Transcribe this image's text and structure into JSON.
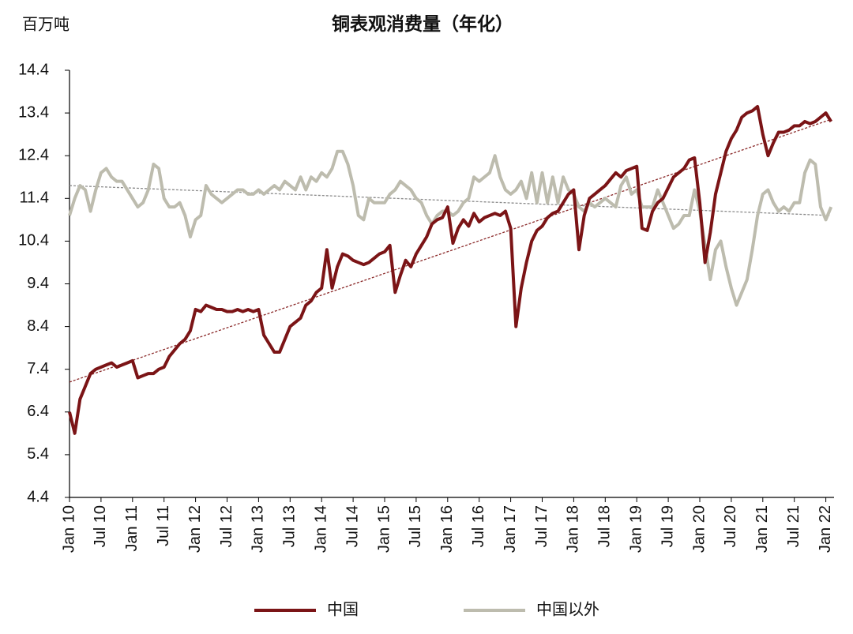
{
  "chart_data": {
    "type": "line",
    "title": "铜表观消费量（年化）",
    "y_label": "百万吨",
    "categories": [
      "Jan 10",
      null,
      null,
      null,
      null,
      null,
      "Jul 10",
      null,
      null,
      null,
      null,
      null,
      "Jan 11",
      null,
      null,
      null,
      null,
      null,
      "Jul 11",
      null,
      null,
      null,
      null,
      null,
      "Jan 12",
      null,
      null,
      null,
      null,
      null,
      "Jul 12",
      null,
      null,
      null,
      null,
      null,
      "Jan 13",
      null,
      null,
      null,
      null,
      null,
      "Jul 13",
      null,
      null,
      null,
      null,
      null,
      "Jan 14",
      null,
      null,
      null,
      null,
      null,
      "Jul 14",
      null,
      null,
      null,
      null,
      null,
      "Jan 15",
      null,
      null,
      null,
      null,
      null,
      "Jul 15",
      null,
      null,
      null,
      null,
      null,
      "Jan 16",
      null,
      null,
      null,
      null,
      null,
      "Jul 16",
      null,
      null,
      null,
      null,
      null,
      "Jan 17",
      null,
      null,
      null,
      null,
      null,
      "Jul 17",
      null,
      null,
      null,
      null,
      null,
      "Jan 18",
      null,
      null,
      null,
      null,
      null,
      "Jul 18",
      null,
      null,
      null,
      null,
      null,
      "Jan 19",
      null,
      null,
      null,
      null,
      null,
      "Jul 19",
      null,
      null,
      null,
      null,
      null,
      "Jan 20",
      null,
      null,
      null,
      null,
      null,
      "Jul 20",
      null,
      null,
      null,
      null,
      null,
      "Jan 21",
      null,
      null,
      null,
      null,
      null,
      "Jul 21",
      null,
      null,
      null,
      null,
      null,
      "Jan 22",
      null
    ],
    "series": [
      {
        "name": "中国",
        "color": "#7b1416",
        "values": [
          6.4,
          5.9,
          6.7,
          7.0,
          7.3,
          7.4,
          7.45,
          7.5,
          7.55,
          7.45,
          7.5,
          7.55,
          7.6,
          7.2,
          7.25,
          7.3,
          7.3,
          7.4,
          7.45,
          7.7,
          7.85,
          8.0,
          8.1,
          8.3,
          8.8,
          8.75,
          8.9,
          8.85,
          8.8,
          8.8,
          8.75,
          8.75,
          8.8,
          8.75,
          8.8,
          8.75,
          8.8,
          8.2,
          8.0,
          7.8,
          7.8,
          8.1,
          8.4,
          8.5,
          8.6,
          8.9,
          9.0,
          9.2,
          9.3,
          10.2,
          9.3,
          9.8,
          10.1,
          10.05,
          9.95,
          9.9,
          9.85,
          9.9,
          10.0,
          10.1,
          10.15,
          10.3,
          9.2,
          9.6,
          9.95,
          9.8,
          10.1,
          10.3,
          10.5,
          10.8,
          10.9,
          10.95,
          11.2,
          10.35,
          10.7,
          10.9,
          10.75,
          11.05,
          10.85,
          10.95,
          11.0,
          11.05,
          11.0,
          11.1,
          10.7,
          8.4,
          9.3,
          9.9,
          10.4,
          10.65,
          10.75,
          10.95,
          11.05,
          11.1,
          11.3,
          11.5,
          11.6,
          10.2,
          11.0,
          11.4,
          11.5,
          11.6,
          11.7,
          11.85,
          12.0,
          11.9,
          12.05,
          12.1,
          12.15,
          10.7,
          10.65,
          11.1,
          11.3,
          11.4,
          11.65,
          11.9,
          12.0,
          12.1,
          12.3,
          12.35,
          11.3,
          9.9,
          10.6,
          11.5,
          12.0,
          12.5,
          12.8,
          13.0,
          13.3,
          13.4,
          13.45,
          13.55,
          12.9,
          12.4,
          12.7,
          12.95,
          12.95,
          13.0,
          13.1,
          13.1,
          13.2,
          13.15,
          13.2,
          13.3,
          13.4,
          13.2
        ]
      },
      {
        "name": "中国以外",
        "color": "#bdbcae",
        "values": [
          11.0,
          11.4,
          11.7,
          11.6,
          11.1,
          11.6,
          12.0,
          12.1,
          11.9,
          11.8,
          11.8,
          11.6,
          11.4,
          11.2,
          11.3,
          11.6,
          12.2,
          12.1,
          11.4,
          11.2,
          11.2,
          11.3,
          11.0,
          10.5,
          10.9,
          11.0,
          11.7,
          11.5,
          11.4,
          11.3,
          11.4,
          11.5,
          11.6,
          11.6,
          11.5,
          11.5,
          11.6,
          11.5,
          11.6,
          11.7,
          11.6,
          11.8,
          11.7,
          11.6,
          11.9,
          11.6,
          11.9,
          11.8,
          12.0,
          11.9,
          12.1,
          12.5,
          12.5,
          12.2,
          11.7,
          11.0,
          10.9,
          11.4,
          11.3,
          11.3,
          11.3,
          11.5,
          11.6,
          11.8,
          11.7,
          11.6,
          11.4,
          11.3,
          11.0,
          10.8,
          11.0,
          11.1,
          11.1,
          11.0,
          11.1,
          11.3,
          11.4,
          11.9,
          11.8,
          11.9,
          12.0,
          12.4,
          11.9,
          11.6,
          11.5,
          11.6,
          11.8,
          11.4,
          12.0,
          11.3,
          12.0,
          11.3,
          11.9,
          11.3,
          11.9,
          11.6,
          11.5,
          11.2,
          11.1,
          11.3,
          11.2,
          11.3,
          11.4,
          11.3,
          11.2,
          11.7,
          11.9,
          11.5,
          11.6,
          11.2,
          11.2,
          11.2,
          11.6,
          11.3,
          11.0,
          10.7,
          10.8,
          11.0,
          11.0,
          11.6,
          11.1,
          10.3,
          9.5,
          10.2,
          10.4,
          9.8,
          9.3,
          8.9,
          9.2,
          9.5,
          10.2,
          11.0,
          11.5,
          11.6,
          11.3,
          11.1,
          11.2,
          11.1,
          11.3,
          11.3,
          12.0,
          12.3,
          12.2,
          11.2,
          10.9,
          11.2
        ]
      }
    ],
    "trendlines": [
      {
        "color": "#8b2a2a",
        "values": [
          7.1,
          13.25
        ]
      },
      {
        "color": "#8a8a8a",
        "values": [
          11.7,
          11.0
        ]
      }
    ],
    "ylim": [
      4.4,
      14.4
    ],
    "yticks": [
      4.4,
      5.4,
      6.4,
      7.4,
      8.4,
      9.4,
      10.4,
      11.4,
      12.4,
      13.4,
      14.4
    ],
    "grid": false,
    "legend": "bottom"
  }
}
